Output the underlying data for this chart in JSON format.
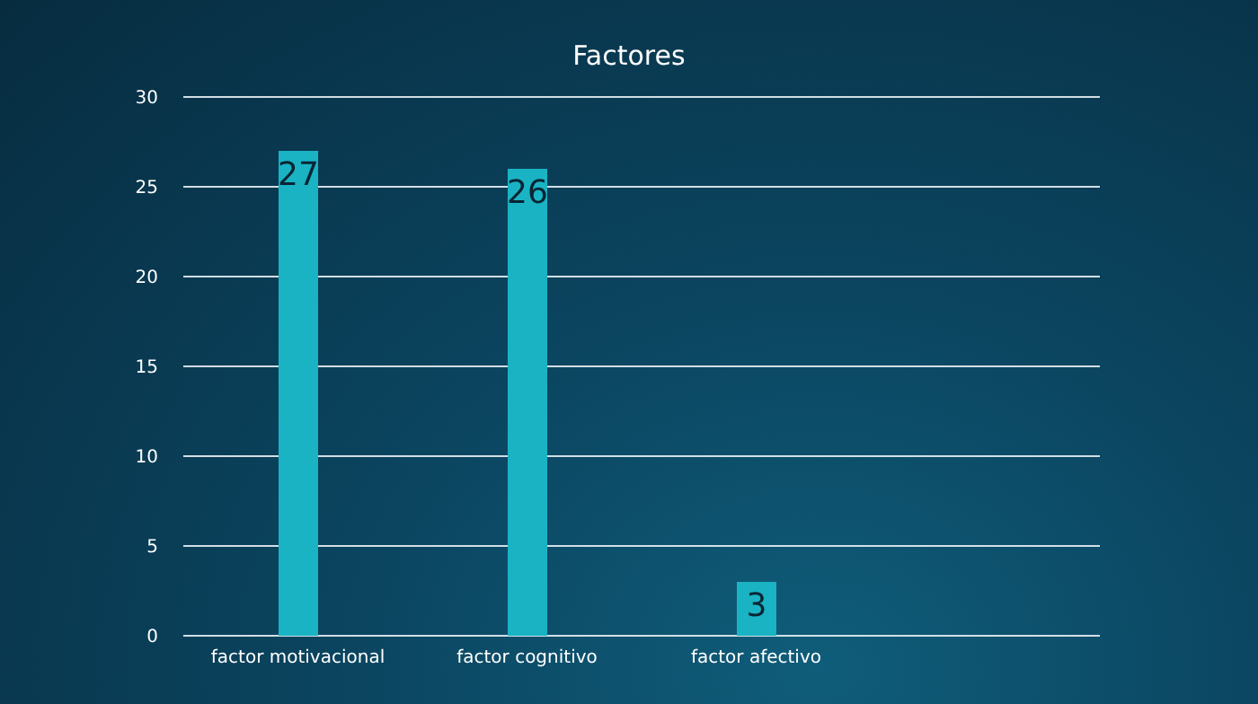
{
  "chart_data": {
    "type": "bar",
    "title": "Factores",
    "categories": [
      "factor motivacional",
      "factor cognitivo",
      "factor afectivo",
      null
    ],
    "values": [
      27,
      26,
      3,
      null
    ],
    "color": "#1ab3c4",
    "ylim": [
      0,
      30
    ],
    "yticks": [
      0,
      5,
      10,
      15,
      20,
      25,
      30
    ],
    "grid": "y",
    "data_labels": true
  }
}
